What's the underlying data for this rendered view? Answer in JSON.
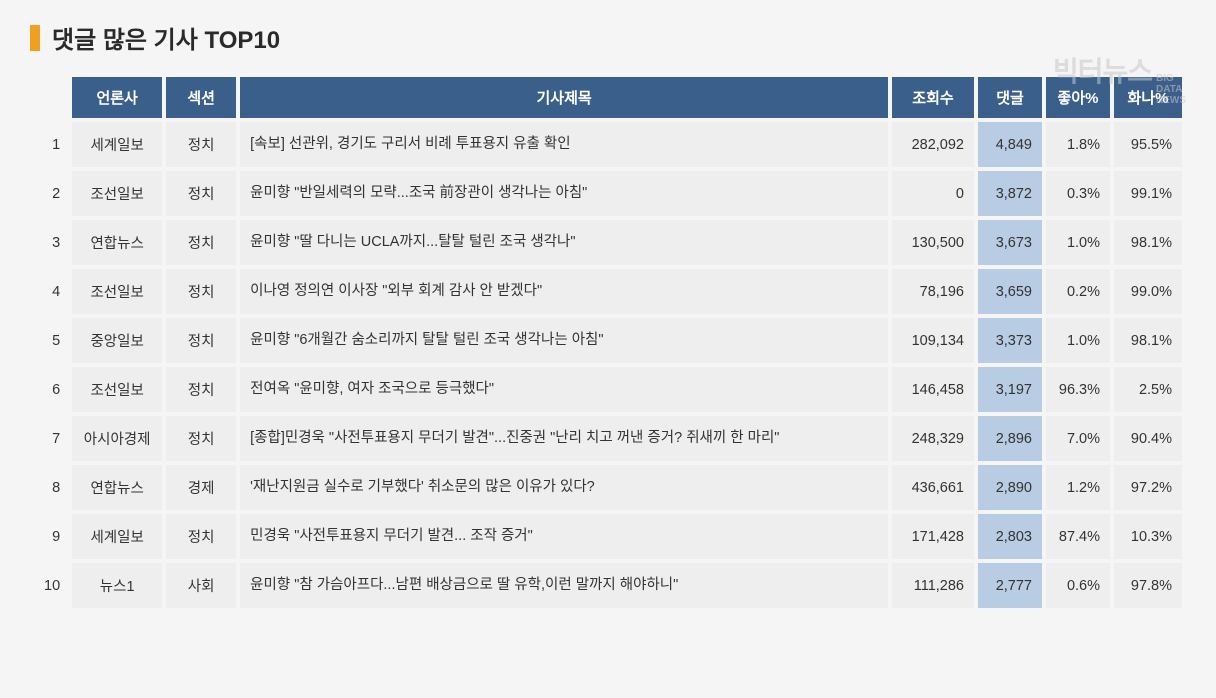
{
  "title": "댓글 많은 기사 TOP10",
  "watermark": {
    "main": "빅터뉴스",
    "sub1": "BIG",
    "sub2": "DATA",
    "sub3": "NEWS"
  },
  "columns": {
    "press": "언론사",
    "section": "섹션",
    "article": "기사제목",
    "views": "조회수",
    "comments": "댓글",
    "like": "좋아%",
    "angry": "화나%"
  },
  "rows": [
    {
      "rank": "1",
      "press": "세계일보",
      "section": "정치",
      "article": "[속보] 선관위, 경기도 구리서 비례 투표용지 유출 확인",
      "views": "282,092",
      "comments": "4,849",
      "like": "1.8%",
      "angry": "95.5%"
    },
    {
      "rank": "2",
      "press": "조선일보",
      "section": "정치",
      "article": "윤미향 \"반일세력의 모략...조국 前장관이 생각나는 아침\"",
      "views": "0",
      "comments": "3,872",
      "like": "0.3%",
      "angry": "99.1%"
    },
    {
      "rank": "3",
      "press": "연합뉴스",
      "section": "정치",
      "article": "윤미향 \"딸 다니는 UCLA까지...탈탈 털린 조국 생각나\"",
      "views": "130,500",
      "comments": "3,673",
      "like": "1.0%",
      "angry": "98.1%"
    },
    {
      "rank": "4",
      "press": "조선일보",
      "section": "정치",
      "article": "이나영 정의연 이사장 \"외부 회계 감사 안 받겠다\"",
      "views": "78,196",
      "comments": "3,659",
      "like": "0.2%",
      "angry": "99.0%"
    },
    {
      "rank": "5",
      "press": "중앙일보",
      "section": "정치",
      "article": "윤미향 \"6개월간 숨소리까지 탈탈 털린 조국 생각나는 아침\"",
      "views": "109,134",
      "comments": "3,373",
      "like": "1.0%",
      "angry": "98.1%"
    },
    {
      "rank": "6",
      "press": "조선일보",
      "section": "정치",
      "article": "전여옥 \"윤미향, 여자 조국으로 등극했다\"",
      "views": "146,458",
      "comments": "3,197",
      "like": "96.3%",
      "angry": "2.5%"
    },
    {
      "rank": "7",
      "press": "아시아경제",
      "section": "정치",
      "article": "[종합]민경욱 \"사전투표용지 무더기 발견\"...진중권 \"난리 치고 꺼낸 증거? 쥐새끼 한 마리\"",
      "views": "248,329",
      "comments": "2,896",
      "like": "7.0%",
      "angry": "90.4%"
    },
    {
      "rank": "8",
      "press": "연합뉴스",
      "section": "경제",
      "article": "'재난지원금 실수로 기부했다' 취소문의 많은 이유가 있다?",
      "views": "436,661",
      "comments": "2,890",
      "like": "1.2%",
      "angry": "97.2%"
    },
    {
      "rank": "9",
      "press": "세계일보",
      "section": "정치",
      "article": "민경욱 \"사전투표용지 무더기 발견... 조작 증거\"",
      "views": "171,428",
      "comments": "2,803",
      "like": "87.4%",
      "angry": "10.3%"
    },
    {
      "rank": "10",
      "press": "뉴스1",
      "section": "사회",
      "article": "윤미향 \"참 가슴아프다...남편 배상금으로 딸 유학,이런 말까지 해야하니\"",
      "views": "111,286",
      "comments": "2,777",
      "like": "0.6%",
      "angry": "97.8%"
    }
  ],
  "colors": {
    "header_bg": "#3a5f8a",
    "header_text": "#ffffff",
    "cell_bg": "#eeeeee",
    "highlight_bg": "#b8cce4",
    "title_bar": "#f0a020",
    "text": "#333333",
    "page_bg": "#f5f5f5"
  }
}
